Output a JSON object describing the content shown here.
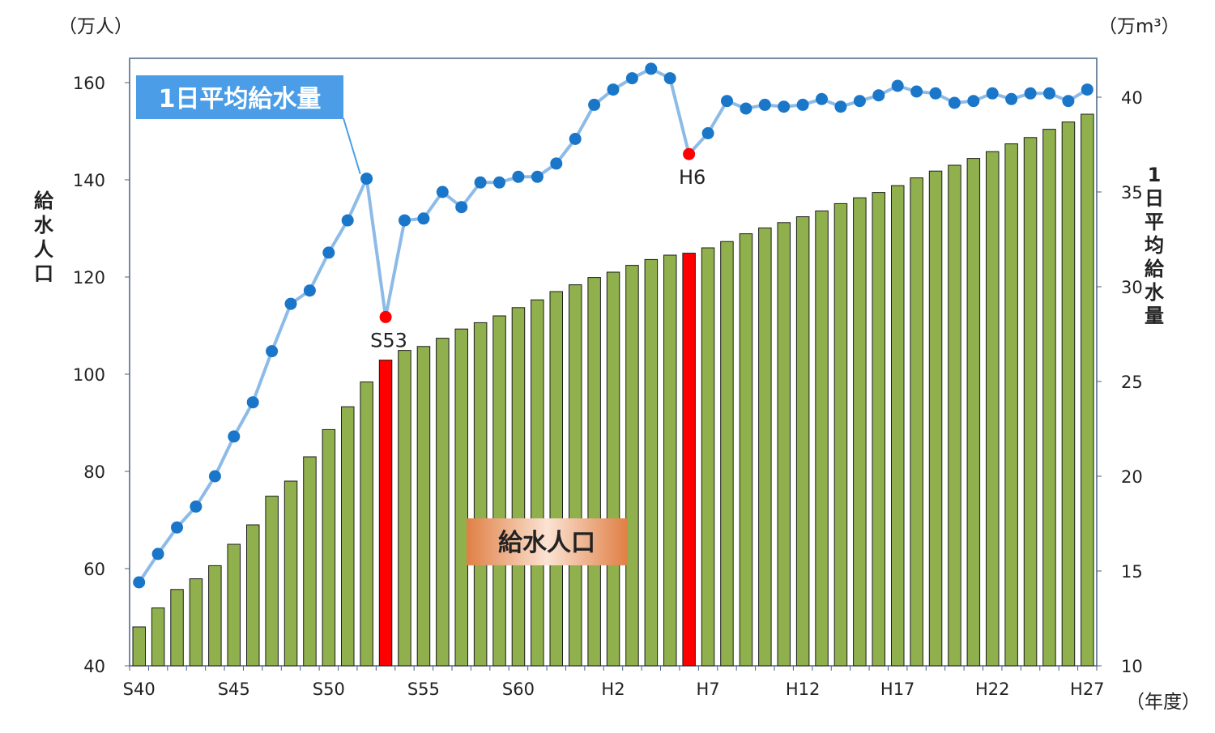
{
  "chart_data": {
    "type": "bar",
    "units": {
      "left": "（万人）",
      "right": "（万m³）",
      "x": "（年度）"
    },
    "left_axis_title": "給水人口",
    "right_axis_title": "1日平均給水量",
    "left_ylim": [
      40,
      160
    ],
    "left_ticks": [
      "40",
      "60",
      "80",
      "100",
      "120",
      "140",
      "160"
    ],
    "right_ylim": [
      10,
      42
    ],
    "right_ticks": [
      "10",
      "15",
      "20",
      "25",
      "30",
      "35",
      "40"
    ],
    "x_tick_labels": [
      "S40",
      "S45",
      "S50",
      "S55",
      "S60",
      "H2",
      "H7",
      "H12",
      "H17",
      "H22",
      "H27"
    ],
    "categories": [
      "S40",
      "S41",
      "S42",
      "S43",
      "S44",
      "S45",
      "S46",
      "S47",
      "S48",
      "S49",
      "S50",
      "S51",
      "S52",
      "S53",
      "S54",
      "S55",
      "S56",
      "S57",
      "S58",
      "S59",
      "S60",
      "S61",
      "S62",
      "S63",
      "H1",
      "H2",
      "H3",
      "H4",
      "H5",
      "H6",
      "H7",
      "H8",
      "H9",
      "H10",
      "H11",
      "H12",
      "H13",
      "H14",
      "H15",
      "H16",
      "H17",
      "H18",
      "H19",
      "H20",
      "H21",
      "H22",
      "H23",
      "H24",
      "H25",
      "H26",
      "H27"
    ],
    "series": [
      {
        "name": "給水人口",
        "type": "bar",
        "axis": "left",
        "color": "#8fb04c",
        "highlight_color": "#ff0000",
        "highlight": [
          "S53",
          "H6"
        ],
        "values": [
          48.0,
          51.9,
          55.7,
          57.9,
          60.6,
          65.0,
          69.0,
          74.9,
          78.0,
          83.0,
          88.6,
          93.3,
          98.4,
          102.9,
          104.9,
          105.7,
          107.4,
          109.3,
          110.6,
          112.0,
          113.7,
          115.3,
          117.0,
          118.4,
          119.9,
          121.0,
          122.4,
          123.6,
          124.5,
          124.9,
          126.0,
          127.3,
          128.9,
          130.1,
          131.2,
          132.4,
          133.6,
          135.1,
          136.3,
          137.4,
          138.8,
          140.4,
          141.8,
          143.0,
          144.4,
          145.8,
          147.4,
          148.7,
          150.4,
          151.9,
          153.5
        ]
      },
      {
        "name": "1日平均給水量",
        "type": "line",
        "axis": "right",
        "color": "#8dbbe8",
        "marker_color": "#1a76c8",
        "highlight_color": "#ff0000",
        "highlight": [
          "S53",
          "H6"
        ],
        "values": [
          14.4,
          15.9,
          17.3,
          18.4,
          20.0,
          22.1,
          23.9,
          26.6,
          29.1,
          29.8,
          31.8,
          33.5,
          35.7,
          28.4,
          33.5,
          33.6,
          35.0,
          34.2,
          35.5,
          35.5,
          35.8,
          35.8,
          36.5,
          37.8,
          39.6,
          40.4,
          41.0,
          41.5,
          41.0,
          37.0,
          38.1,
          39.8,
          39.4,
          39.6,
          39.5,
          39.6,
          39.9,
          39.5,
          39.8,
          40.1,
          40.6,
          40.3,
          40.2,
          39.7,
          39.8,
          40.2,
          39.9,
          40.2,
          40.2,
          39.8,
          40.4
        ]
      }
    ],
    "annotations": [
      {
        "category": "S53",
        "label": "S53"
      },
      {
        "category": "H6",
        "label": "H6"
      }
    ],
    "line_label_box": {
      "text": "1日平均給水量",
      "color": "#4a9de6",
      "target": "S52"
    },
    "bar_label_box": {
      "text": "給水人口",
      "color_center": "#fbe3d3",
      "color_edge": "#e07f45"
    },
    "grid": false,
    "legend": "none"
  }
}
